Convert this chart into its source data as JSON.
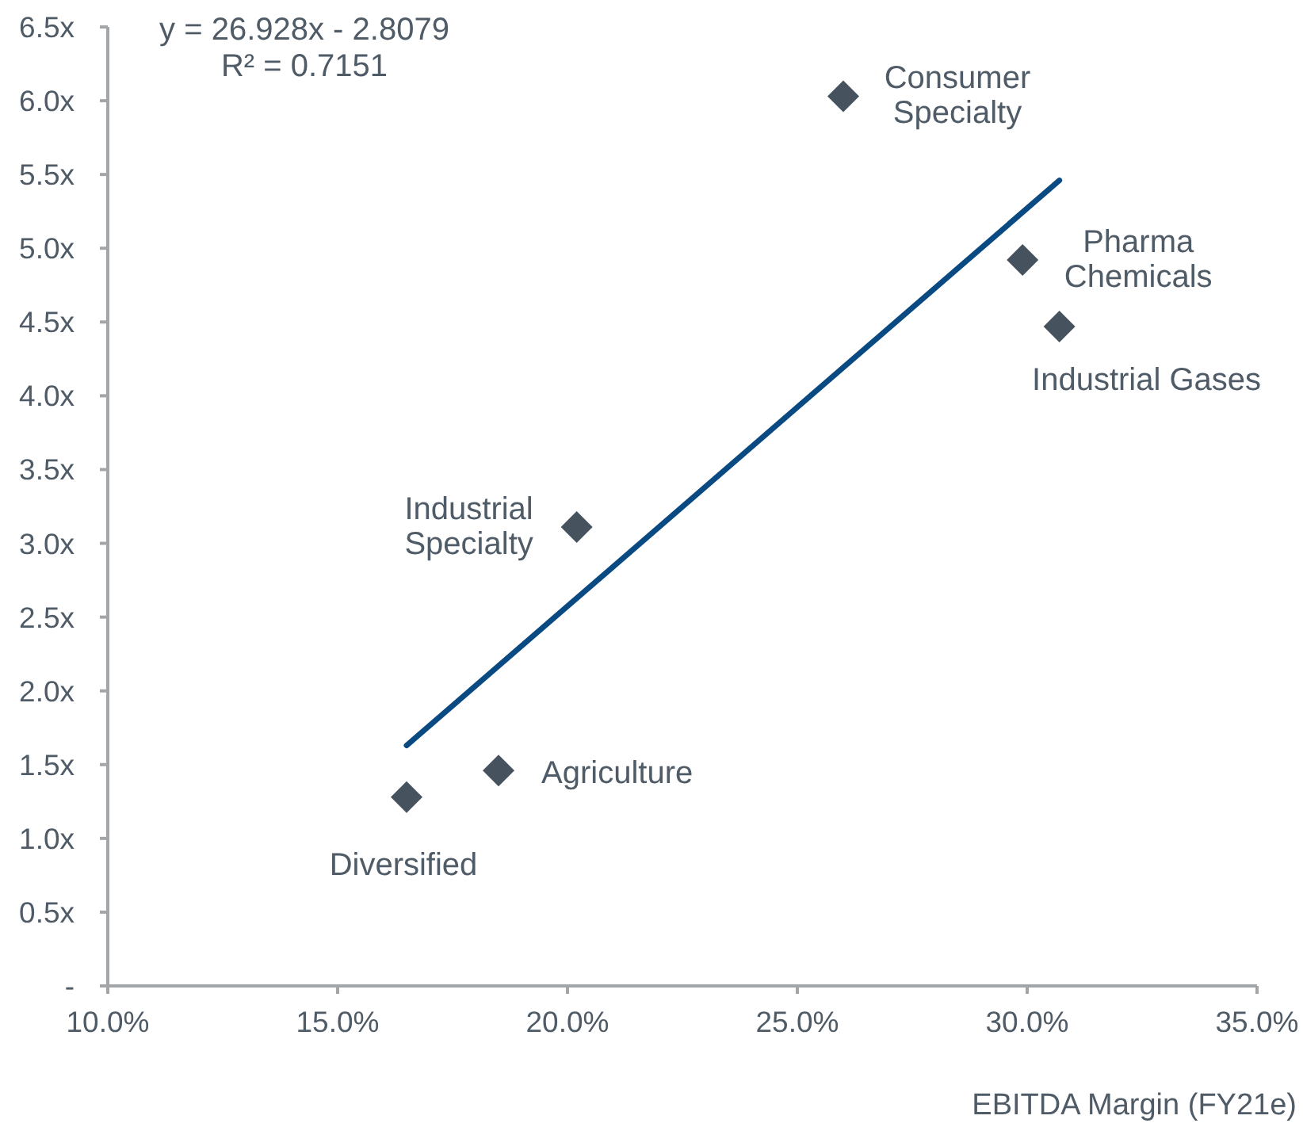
{
  "chart_data": {
    "type": "scatter",
    "xlabel": "EBITDA Margin (FY21e)",
    "annotations": [
      "y = 26.928x - 2.8079",
      "R² = 0.7151",
      {
        "text": "Consumer Specialty",
        "x": 26.0,
        "y": 6.03
      },
      {
        "text": "Pharma Chemicals",
        "x": 29.9,
        "y": 4.92
      },
      {
        "text": "Industrial Gases",
        "x": 30.7,
        "y": 4.47
      },
      {
        "text": "Industrial Specialty",
        "x": 20.2,
        "y": 3.11
      },
      {
        "text": "Agriculture",
        "x": 18.5,
        "y": 1.46
      },
      {
        "text": "Diversified",
        "x": 16.5,
        "y": 1.28
      }
    ],
    "series": [
      {
        "color": "#46535e",
        "x": [
          26.0,
          29.9,
          30.7,
          20.2,
          18.5,
          16.5
        ],
        "values": [
          6.03,
          4.92,
          4.47,
          3.11,
          1.46,
          1.28
        ]
      },
      {
        "type": "line",
        "color": "#0a4a82",
        "x": [
          16.5,
          30.7
        ],
        "values": [
          1.63,
          5.46
        ],
        "marker": "none",
        "line_style": "solid"
      }
    ],
    "marker": "diamond",
    "xlim": [
      10,
      35
    ],
    "ylim": [
      0,
      6.5
    ],
    "xticks": [
      {
        "value": 10,
        "label": "10.0%"
      },
      {
        "value": 15,
        "label": "15.0%"
      },
      {
        "value": 20,
        "label": "20.0%"
      },
      {
        "value": 25,
        "label": "25.0%"
      },
      {
        "value": 30,
        "label": "30.0%"
      },
      {
        "value": 35,
        "label": "35.0%"
      }
    ],
    "yticks": [
      {
        "value": 0,
        "label": "-"
      },
      {
        "value": 0.5,
        "label": "0.5x"
      },
      {
        "value": 1,
        "label": "1.0x"
      },
      {
        "value": 1.5,
        "label": "1.5x"
      },
      {
        "value": 2,
        "label": "2.0x"
      },
      {
        "value": 2.5,
        "label": "2.5x"
      },
      {
        "value": 3,
        "label": "3.0x"
      },
      {
        "value": 3.5,
        "label": "3.5x"
      },
      {
        "value": 4,
        "label": "4.0x"
      },
      {
        "value": 4.5,
        "label": "4.5x"
      },
      {
        "value": 5,
        "label": "5.0x"
      },
      {
        "value": 5.5,
        "label": "5.5x"
      },
      {
        "value": 6,
        "label": "6.0x"
      },
      {
        "value": 6.5,
        "label": "6.5x"
      }
    ],
    "grid": false,
    "legend": false
  }
}
